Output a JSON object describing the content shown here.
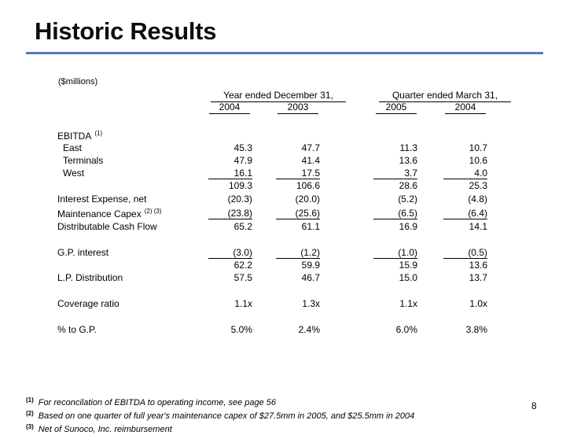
{
  "title": "Historic Results",
  "units": "($millions)",
  "columns": {
    "group1": "Year ended December 31,",
    "group2": "Quarter ended March 31,",
    "years": [
      "2004",
      "2003",
      "2005",
      "2004"
    ]
  },
  "rows": [
    {
      "label": "EBITDA",
      "sup": "(1)",
      "values": [
        "",
        "",
        "",
        ""
      ]
    },
    {
      "label": "East",
      "values": [
        "45.3",
        "47.7",
        "11.3",
        "10.7"
      ]
    },
    {
      "label": "Terminals",
      "values": [
        "47.9",
        "41.4",
        "13.6",
        "10.6"
      ]
    },
    {
      "label": "West",
      "values": [
        "16.1",
        "17.5",
        "3.7",
        "4.0"
      ]
    },
    {
      "label": "",
      "values": [
        "109.3",
        "106.6",
        "28.6",
        "25.3"
      ]
    },
    {
      "label": "Interest Expense, net",
      "values": [
        "(20.3)",
        "(20.0)",
        "(5.2)",
        "(4.8)"
      ]
    },
    {
      "label": "Maintenance Capex",
      "sup": "(2) (3)",
      "values": [
        "(23.8)",
        "(25.6)",
        "(6.5)",
        "(6.4)"
      ]
    },
    {
      "label": "Distributable Cash Flow",
      "values": [
        "65.2",
        "61.1",
        "16.9",
        "14.1"
      ]
    },
    {
      "label": "G.P. interest",
      "values": [
        "(3.0)",
        "(1.2)",
        "(1.0)",
        "(0.5)"
      ]
    },
    {
      "label": "",
      "values": [
        "62.2",
        "59.9",
        "15.9",
        "13.6"
      ]
    },
    {
      "label": "L.P. Distribution",
      "values": [
        "57.5",
        "46.7",
        "15.0",
        "13.7"
      ]
    },
    {
      "label": "Coverage ratio",
      "values": [
        "1.1x",
        "1.3x",
        "1.1x",
        "1.0x"
      ]
    },
    {
      "label": "% to G.P.",
      "values": [
        "5.0%",
        "2.4%",
        "6.0%",
        "3.8%"
      ]
    }
  ],
  "footnotes": [
    {
      "mark": "(1)",
      "text": "For reconcilation of EBITDA to operating income, see page 56"
    },
    {
      "mark": "(2)",
      "text": "Based on one quarter of full year's maintenance capex of $27.5mm in 2005, and $25.5mm in 2004"
    },
    {
      "mark": "(3)",
      "text": "Net of Sunoco, Inc. reimbursement"
    }
  ],
  "page_number": "8"
}
